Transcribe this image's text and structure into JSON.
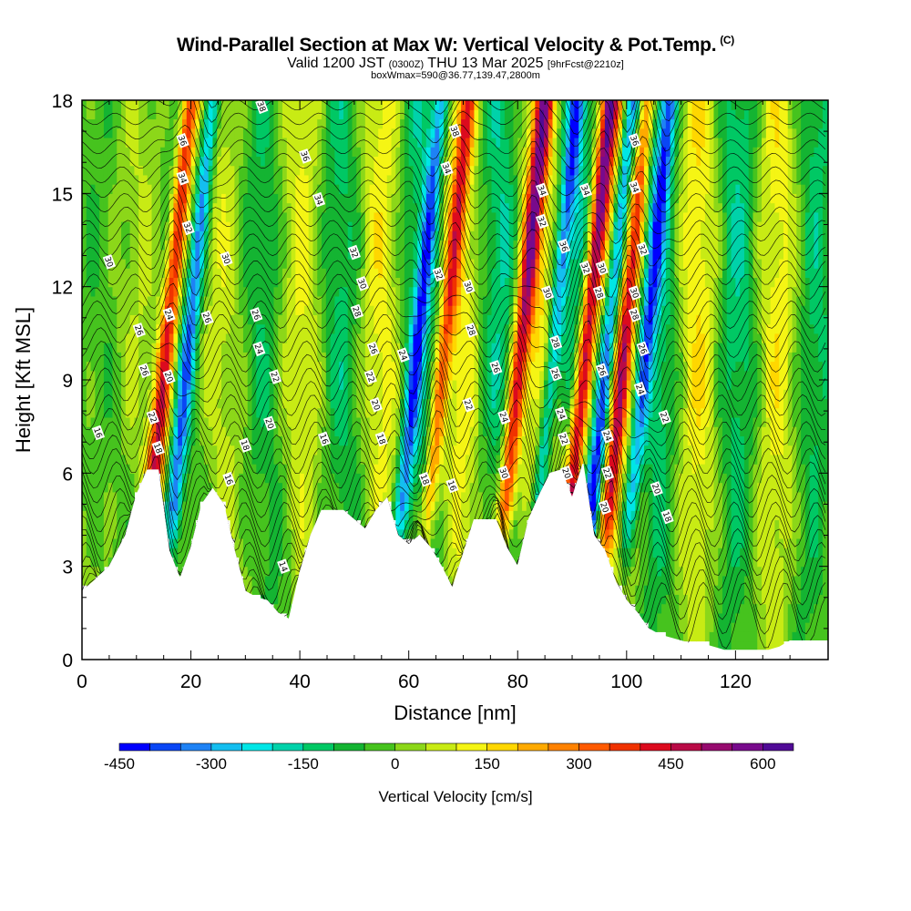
{
  "title": {
    "main": "Wind-Parallel Section at Max W: Vertical Velocity & Pot.Temp.",
    "copyright": "(C)",
    "valid_prefix": "Valid 1200 JST",
    "valid_utc": "(0300Z)",
    "valid_date": "THU 13 Mar 2025",
    "forecast": "[9hrFcst@2210z]",
    "box": "boxWmax=590@36.77,139.47,2800m"
  },
  "chart_data": {
    "type": "heatmap",
    "xlabel": "Distance [nm]",
    "ylabel": "Height [Kft MSL]",
    "xlim": [
      0,
      137
    ],
    "ylim": [
      0,
      18
    ],
    "x_ticks": [
      0,
      20,
      40,
      60,
      80,
      100,
      120
    ],
    "y_ticks": [
      0,
      3,
      6,
      9,
      12,
      15,
      18
    ],
    "colorbar": {
      "label": "Vertical Velocity [cm/s]",
      "min": -450,
      "max": 650,
      "step": 50,
      "tick_values": [
        -450,
        -300,
        -150,
        0,
        150,
        300,
        450,
        600
      ],
      "tick_labels": [
        "-450",
        "-300",
        "-150",
        "0",
        "150",
        "300",
        "450",
        "600"
      ],
      "colors": [
        "#0000ff",
        "#0a46f5",
        "#1e82f5",
        "#14bef0",
        "#00e6e6",
        "#00d2aa",
        "#00c864",
        "#14b432",
        "#46c31e",
        "#8cd719",
        "#c8eb14",
        "#f5f514",
        "#ffd700",
        "#ffaa00",
        "#ff8200",
        "#ff5a00",
        "#f03200",
        "#dc0a1e",
        "#b90a46",
        "#960a6e",
        "#780a8c",
        "#500a96"
      ]
    },
    "updraft_cores": [
      {
        "x": 15,
        "w": 450
      },
      {
        "x": 66,
        "w": 300
      },
      {
        "x": 80,
        "w": 450
      },
      {
        "x": 92,
        "w": 550
      },
      {
        "x": 99,
        "w": 350
      }
    ],
    "downdraft_cores": [
      {
        "x": 19,
        "w": -300
      },
      {
        "x": 61,
        "w": -300
      },
      {
        "x": 86,
        "w": -300
      },
      {
        "x": 96,
        "w": -400
      },
      {
        "x": 103,
        "w": -300
      }
    ],
    "terrain": {
      "x": [
        0,
        2,
        5,
        8,
        10,
        12,
        14,
        16,
        18,
        20,
        22,
        24,
        26,
        28,
        30,
        32,
        34,
        36,
        38,
        40,
        42,
        44,
        46,
        48,
        50,
        52,
        54,
        56,
        58,
        60,
        62,
        64,
        66,
        68,
        70,
        72,
        74,
        76,
        78,
        80,
        82,
        84,
        86,
        88,
        90,
        92,
        94,
        96,
        98,
        100,
        102,
        104,
        106,
        108,
        110,
        112,
        114,
        116,
        118,
        120,
        122,
        124,
        126,
        128,
        130,
        132,
        134,
        137
      ],
      "h": [
        2.2,
        2.5,
        3.0,
        4.0,
        5.3,
        6.1,
        6.1,
        3.5,
        2.6,
        3.6,
        5.0,
        5.5,
        5.0,
        3.5,
        2.2,
        2.0,
        1.9,
        1.5,
        1.3,
        2.8,
        4.0,
        4.8,
        4.8,
        4.8,
        4.5,
        4.2,
        4.8,
        5.2,
        4.0,
        3.7,
        4.0,
        3.6,
        3.0,
        2.3,
        3.4,
        4.5,
        4.5,
        4.5,
        3.6,
        3.0,
        4.5,
        5.3,
        6.0,
        6.1,
        5.2,
        6.3,
        4.0,
        3.5,
        2.5,
        1.9,
        1.5,
        1.0,
        0.8,
        0.7,
        0.6,
        0.5,
        0.5,
        0.4,
        0.3,
        0.3,
        0.3,
        0.3,
        0.3,
        0.4,
        0.6,
        0.6,
        0.6,
        0.6
      ]
    },
    "theta_contour_labels": [
      {
        "x": 33,
        "y": 17.8,
        "t": "38"
      },
      {
        "x": 18.5,
        "y": 16.7,
        "t": "36"
      },
      {
        "x": 18.5,
        "y": 15.5,
        "t": "34"
      },
      {
        "x": 19.5,
        "y": 13.9,
        "t": "32"
      },
      {
        "x": 5,
        "y": 12.8,
        "t": "30"
      },
      {
        "x": 26.5,
        "y": 12.9,
        "t": "30"
      },
      {
        "x": 16,
        "y": 11.1,
        "t": "24"
      },
      {
        "x": 23,
        "y": 11.0,
        "t": "26"
      },
      {
        "x": 10.5,
        "y": 10.6,
        "t": "26"
      },
      {
        "x": 32,
        "y": 11.1,
        "t": "26"
      },
      {
        "x": 11.5,
        "y": 9.3,
        "t": "26"
      },
      {
        "x": 16,
        "y": 9.1,
        "t": "20"
      },
      {
        "x": 32.5,
        "y": 10.0,
        "t": "24"
      },
      {
        "x": 35.5,
        "y": 9.1,
        "t": "22"
      },
      {
        "x": 3,
        "y": 7.3,
        "t": "16"
      },
      {
        "x": 13,
        "y": 7.8,
        "t": "22"
      },
      {
        "x": 34.5,
        "y": 7.6,
        "t": "20"
      },
      {
        "x": 14,
        "y": 6.8,
        "t": "18"
      },
      {
        "x": 30,
        "y": 6.9,
        "t": "18"
      },
      {
        "x": 27,
        "y": 5.8,
        "t": "16"
      },
      {
        "x": 44.5,
        "y": 7.1,
        "t": "16"
      },
      {
        "x": 37,
        "y": 3.0,
        "t": "14"
      },
      {
        "x": 41,
        "y": 16.2,
        "t": "36"
      },
      {
        "x": 43.5,
        "y": 14.8,
        "t": "34"
      },
      {
        "x": 50,
        "y": 13.1,
        "t": "32"
      },
      {
        "x": 51.5,
        "y": 12.1,
        "t": "30"
      },
      {
        "x": 50.5,
        "y": 11.2,
        "t": "28"
      },
      {
        "x": 53.5,
        "y": 10.0,
        "t": "26"
      },
      {
        "x": 53,
        "y": 9.1,
        "t": "22"
      },
      {
        "x": 54,
        "y": 8.2,
        "t": "20"
      },
      {
        "x": 55,
        "y": 7.1,
        "t": "18"
      },
      {
        "x": 59,
        "y": 9.8,
        "t": "24"
      },
      {
        "x": 63,
        "y": 5.8,
        "t": "18"
      },
      {
        "x": 68,
        "y": 5.6,
        "t": "16"
      },
      {
        "x": 68.5,
        "y": 17.0,
        "t": "38"
      },
      {
        "x": 67,
        "y": 15.8,
        "t": "34"
      },
      {
        "x": 65.5,
        "y": 12.4,
        "t": "32"
      },
      {
        "x": 71,
        "y": 12.0,
        "t": "30"
      },
      {
        "x": 71.5,
        "y": 10.6,
        "t": "28"
      },
      {
        "x": 76,
        "y": 9.4,
        "t": "26"
      },
      {
        "x": 71,
        "y": 8.2,
        "t": "22"
      },
      {
        "x": 77.5,
        "y": 7.8,
        "t": "24"
      },
      {
        "x": 77.5,
        "y": 6.0,
        "t": "30"
      },
      {
        "x": 84.5,
        "y": 15.1,
        "t": "34"
      },
      {
        "x": 84.5,
        "y": 14.1,
        "t": "32"
      },
      {
        "x": 88.5,
        "y": 13.3,
        "t": "36"
      },
      {
        "x": 85.5,
        "y": 11.8,
        "t": "30"
      },
      {
        "x": 87,
        "y": 10.2,
        "t": "28"
      },
      {
        "x": 87,
        "y": 9.2,
        "t": "26"
      },
      {
        "x": 88,
        "y": 7.9,
        "t": "24"
      },
      {
        "x": 88.5,
        "y": 7.1,
        "t": "22"
      },
      {
        "x": 89,
        "y": 6.0,
        "t": "20"
      },
      {
        "x": 92.5,
        "y": 15.1,
        "t": "34"
      },
      {
        "x": 92.5,
        "y": 12.6,
        "t": "32"
      },
      {
        "x": 95.5,
        "y": 12.6,
        "t": "30"
      },
      {
        "x": 95,
        "y": 11.8,
        "t": "28"
      },
      {
        "x": 95.5,
        "y": 9.3,
        "t": "26"
      },
      {
        "x": 96.5,
        "y": 7.2,
        "t": "24"
      },
      {
        "x": 96.5,
        "y": 6.0,
        "t": "22"
      },
      {
        "x": 96,
        "y": 4.9,
        "t": "20"
      },
      {
        "x": 101.5,
        "y": 16.7,
        "t": "36"
      },
      {
        "x": 101.5,
        "y": 15.2,
        "t": "34"
      },
      {
        "x": 103,
        "y": 13.2,
        "t": "32"
      },
      {
        "x": 101.5,
        "y": 11.8,
        "t": "30"
      },
      {
        "x": 101.5,
        "y": 11.1,
        "t": "28"
      },
      {
        "x": 103,
        "y": 10.0,
        "t": "26"
      },
      {
        "x": 102.5,
        "y": 8.7,
        "t": "24"
      },
      {
        "x": 107,
        "y": 7.8,
        "t": "22"
      },
      {
        "x": 105.5,
        "y": 5.5,
        "t": "20"
      },
      {
        "x": 107.5,
        "y": 4.6,
        "t": "18"
      }
    ]
  }
}
